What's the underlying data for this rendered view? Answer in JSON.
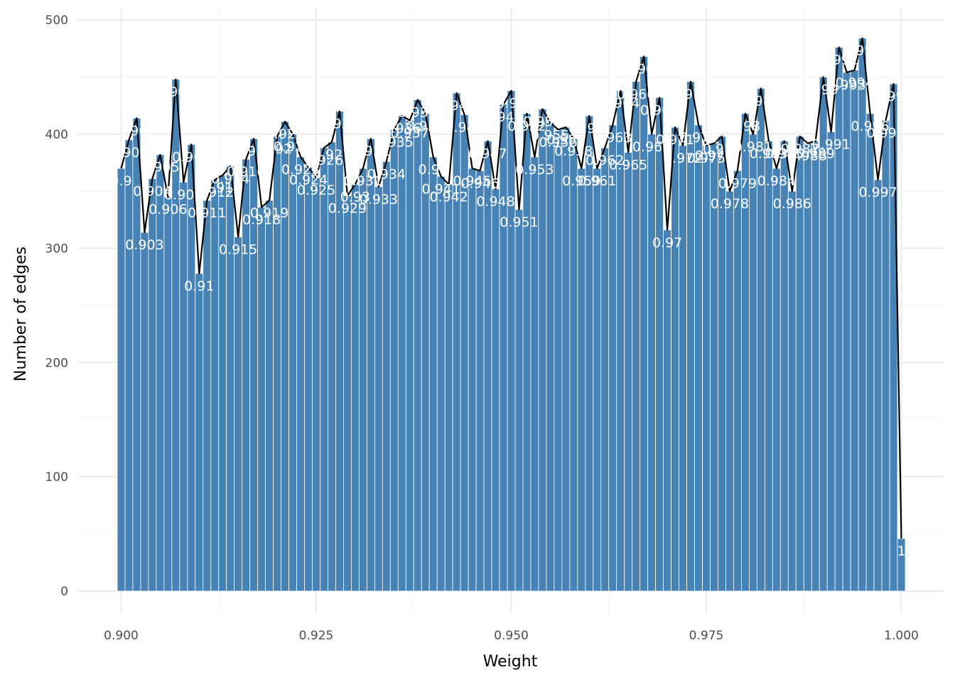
{
  "chart_data": {
    "type": "bar",
    "xlabel": "Weight",
    "ylabel": "Number of edges",
    "xlim": [
      0.895,
      1.0055
    ],
    "ylim": [
      0,
      500
    ],
    "x_ticks": [
      "0.900",
      "0.925",
      "0.950",
      "0.975",
      "1.000"
    ],
    "x_tick_values": [
      0.9,
      0.925,
      0.95,
      0.975,
      1.0
    ],
    "y_ticks": [
      "0",
      "100",
      "200",
      "300",
      "400",
      "500"
    ],
    "y_tick_values": [
      0,
      100,
      200,
      300,
      400,
      500
    ],
    "grid": true,
    "bin_width": 0.001,
    "bar_color": "#4682B4",
    "line_color": "#000000",
    "label_color": "#FFFFFF",
    "series": [
      {
        "type": "bar",
        "x": [
          0.9,
          0.901,
          0.902,
          0.903,
          0.904,
          0.905,
          0.906,
          0.907,
          0.908,
          0.909,
          0.91,
          0.911,
          0.912,
          0.913,
          0.914,
          0.915,
          0.916,
          0.917,
          0.918,
          0.919,
          0.92,
          0.921,
          0.922,
          0.923,
          0.924,
          0.925,
          0.926,
          0.927,
          0.928,
          0.929,
          0.93,
          0.931,
          0.932,
          0.933,
          0.934,
          0.935,
          0.936,
          0.937,
          0.938,
          0.939,
          0.94,
          0.941,
          0.942,
          0.943,
          0.944,
          0.945,
          0.946,
          0.947,
          0.948,
          0.949,
          0.95,
          0.951,
          0.952,
          0.953,
          0.954,
          0.955,
          0.956,
          0.957,
          0.958,
          0.959,
          0.96,
          0.961,
          0.962,
          0.963,
          0.964,
          0.965,
          0.966,
          0.967,
          0.968,
          0.969,
          0.97,
          0.971,
          0.972,
          0.973,
          0.974,
          0.975,
          0.976,
          0.977,
          0.978,
          0.979,
          0.98,
          0.981,
          0.982,
          0.983,
          0.984,
          0.985,
          0.986,
          0.987,
          0.988,
          0.989,
          0.99,
          0.991,
          0.992,
          0.993,
          0.994,
          0.995,
          0.996,
          0.997,
          0.998,
          0.999,
          1.0
        ],
        "values": [
          370,
          395,
          414,
          314,
          361,
          382,
          345,
          448,
          358,
          391,
          278,
          342,
          360,
          364,
          372,
          310,
          378,
          396,
          336,
          342,
          398,
          411,
          400,
          380,
          371,
          362,
          388,
          393,
          420,
          346,
          356,
          370,
          396,
          354,
          376,
          404,
          416,
          412,
          430,
          418,
          380,
          363,
          356,
          436,
          417,
          370,
          368,
          394,
          352,
          426,
          438,
          334,
          418,
          380,
          422,
          410,
          404,
          406,
          396,
          370,
          416,
          370,
          388,
          408,
          438,
          384,
          446,
          468,
          400,
          432,
          316,
          406,
          390,
          446,
          408,
          390,
          392,
          398,
          350,
          368,
          418,
          400,
          440,
          394,
          370,
          394,
          350,
          398,
          392,
          394,
          450,
          402,
          476,
          454,
          456,
          484,
          418,
          360,
          412,
          444,
          46
        ]
      }
    ],
    "data_labels": [
      "0.9",
      "0.901",
      "0.902",
      "0.903",
      "0.904",
      "0.905",
      "0.906",
      "0.907",
      "0.908",
      "0.909",
      "0.91",
      "0.911",
      "0.912",
      "0.913",
      "0.914",
      "0.915",
      "0.916",
      "0.917",
      "0.918",
      "0.919",
      "0.92",
      "0.921",
      "0.922",
      "0.923",
      "0.924",
      "0.925",
      "0.926",
      "0.927",
      "0.928",
      "0.929",
      "0.93",
      "0.931",
      "0.932",
      "0.933",
      "0.934",
      "0.935",
      "0.936",
      "0.937",
      "0.938",
      "0.939",
      "0.94",
      "0.941",
      "0.942",
      "0.943",
      "0.944",
      "0.945",
      "0.946",
      "0.947",
      "0.948",
      "0.949",
      "0.95",
      "0.951",
      "0.952",
      "0.953",
      "0.954",
      "0.955",
      "0.956",
      "0.957",
      "0.958",
      "0.959",
      "0.96",
      "0.961",
      "0.962",
      "0.963",
      "0.964",
      "0.965",
      "0.966",
      "0.967",
      "0.968",
      "0.969",
      "0.97",
      "0.971",
      "0.972",
      "0.973",
      "0.974",
      "0.975",
      "0.976",
      "0.977",
      "0.978",
      "0.979",
      "0.98",
      "0.981",
      "0.982",
      "0.983",
      "0.984",
      "0.985",
      "0.986",
      "0.987",
      "0.988",
      "0.989",
      "0.99",
      "0.991",
      "0.992",
      "0.993",
      "0.994",
      "0.995",
      "0.996",
      "0.997",
      "0.998",
      "0.999",
      "1"
    ]
  }
}
